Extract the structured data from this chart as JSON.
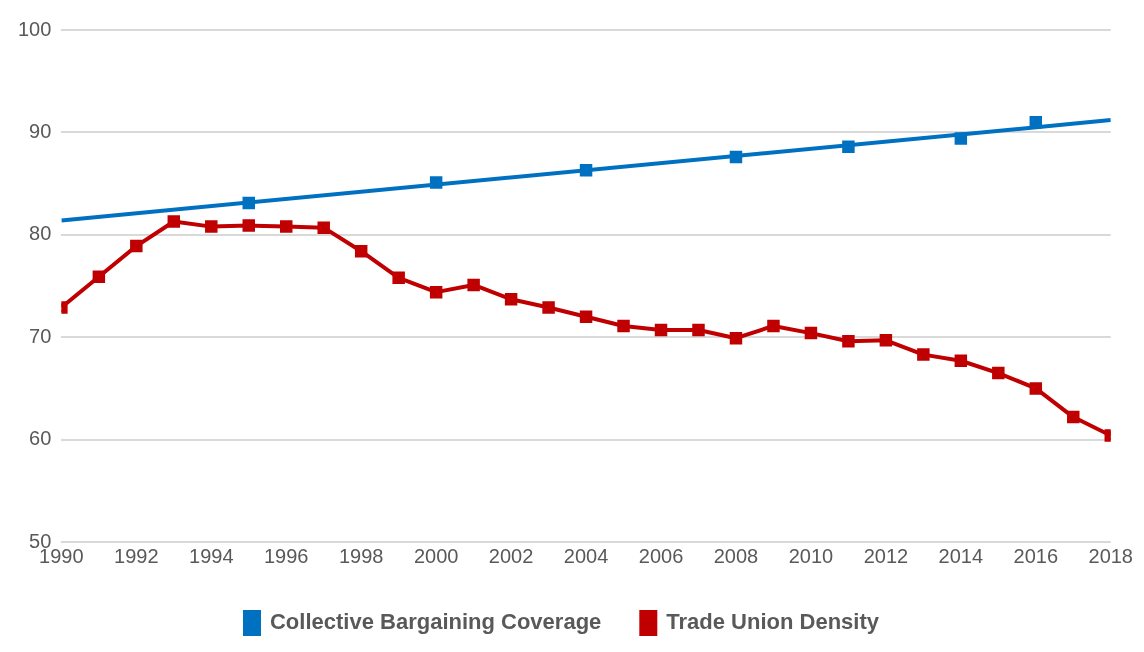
{
  "chart_data": {
    "type": "line",
    "x": [
      1990,
      1991,
      1992,
      1993,
      1994,
      1995,
      1996,
      1997,
      1998,
      1999,
      2000,
      2001,
      2002,
      2003,
      2004,
      2005,
      2006,
      2007,
      2008,
      2009,
      2010,
      2011,
      2012,
      2013,
      2014,
      2015,
      2016,
      2017,
      2018
    ],
    "series": [
      {
        "name": "Collective Bargaining Coverage",
        "type": "scatter",
        "color": "#0070c0",
        "marker": "square",
        "x": [
          1995,
          2000,
          2004,
          2008,
          2011,
          2014,
          2016
        ],
        "values": [
          83.1,
          85.1,
          86.3,
          87.6,
          88.6,
          89.4,
          91.0
        ]
      },
      {
        "type": "line",
        "color": "#0070c0",
        "marker": "none",
        "x": [
          1990,
          2018
        ],
        "values": [
          81.4,
          91.2
        ]
      },
      {
        "name": "Trade Union Density",
        "type": "line",
        "color": "#c00000",
        "marker": "square",
        "values": [
          72.9,
          75.9,
          78.9,
          81.3,
          80.8,
          80.9,
          80.8,
          80.7,
          78.4,
          75.8,
          74.4,
          75.1,
          73.7,
          72.9,
          72.0,
          71.1,
          70.7,
          70.7,
          69.9,
          71.1,
          70.4,
          69.6,
          69.7,
          68.3,
          67.7,
          66.5,
          65.0,
          62.2,
          60.4
        ]
      }
    ],
    "xlim": [
      1990,
      2018
    ],
    "xticks": [
      1990,
      1992,
      1994,
      1996,
      1998,
      2000,
      2002,
      2004,
      2006,
      2008,
      2010,
      2012,
      2014,
      2016,
      2018
    ],
    "ylim": [
      50,
      100
    ],
    "yticks": [
      50,
      60,
      70,
      80,
      90,
      100
    ],
    "grid": "y",
    "legend": "bottom"
  }
}
